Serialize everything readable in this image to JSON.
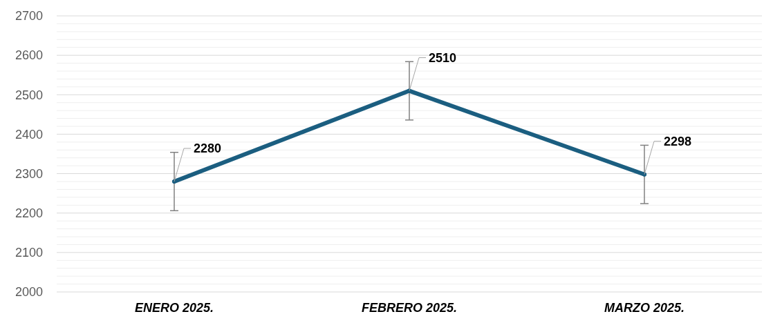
{
  "chart_data": {
    "type": "line",
    "categories": [
      "ENERO 2025.",
      "FEBRERO 2025.",
      "MARZO 2025."
    ],
    "series": [
      {
        "color": "#1b5e80",
        "values": [
          2280,
          2510,
          2298
        ],
        "errors": [
          74,
          74,
          74
        ]
      }
    ],
    "ylim": [
      2000,
      2700
    ],
    "yticks": [
      2000,
      {
        "value": 2020,
        "label": null
      },
      {
        "value": 2040,
        "label": null
      },
      {
        "value": 2060,
        "label": null
      },
      {
        "value": 2080,
        "label": null
      },
      2100,
      {
        "value": 2120,
        "label": null
      },
      {
        "value": 2140,
        "label": null
      },
      {
        "value": 2160,
        "label": null
      },
      {
        "value": 2180,
        "label": null
      },
      2200,
      {
        "value": 2220,
        "label": null
      },
      {
        "value": 2240,
        "label": null
      },
      {
        "value": 2260,
        "label": null
      },
      {
        "value": 2280,
        "label": null
      },
      2300,
      {
        "value": 2320,
        "label": null
      },
      {
        "value": 2340,
        "label": null
      },
      {
        "value": 2360,
        "label": null
      },
      {
        "value": 2380,
        "label": null
      },
      2400,
      {
        "value": 2420,
        "label": null
      },
      {
        "value": 2440,
        "label": null
      },
      {
        "value": 2460,
        "label": null
      },
      {
        "value": 2480,
        "label": null
      },
      2500,
      {
        "value": 2520,
        "label": null
      },
      {
        "value": 2540,
        "label": null
      },
      {
        "value": 2560,
        "label": null
      },
      {
        "value": 2580,
        "label": null
      },
      2600,
      {
        "value": 2620,
        "label": null
      },
      {
        "value": 2640,
        "label": null
      },
      {
        "value": 2660,
        "label": null
      },
      {
        "value": 2680,
        "label": null
      },
      2700
    ],
    "grid": "y",
    "marker": "circle",
    "line_style": "solid",
    "data_labels": true
  }
}
